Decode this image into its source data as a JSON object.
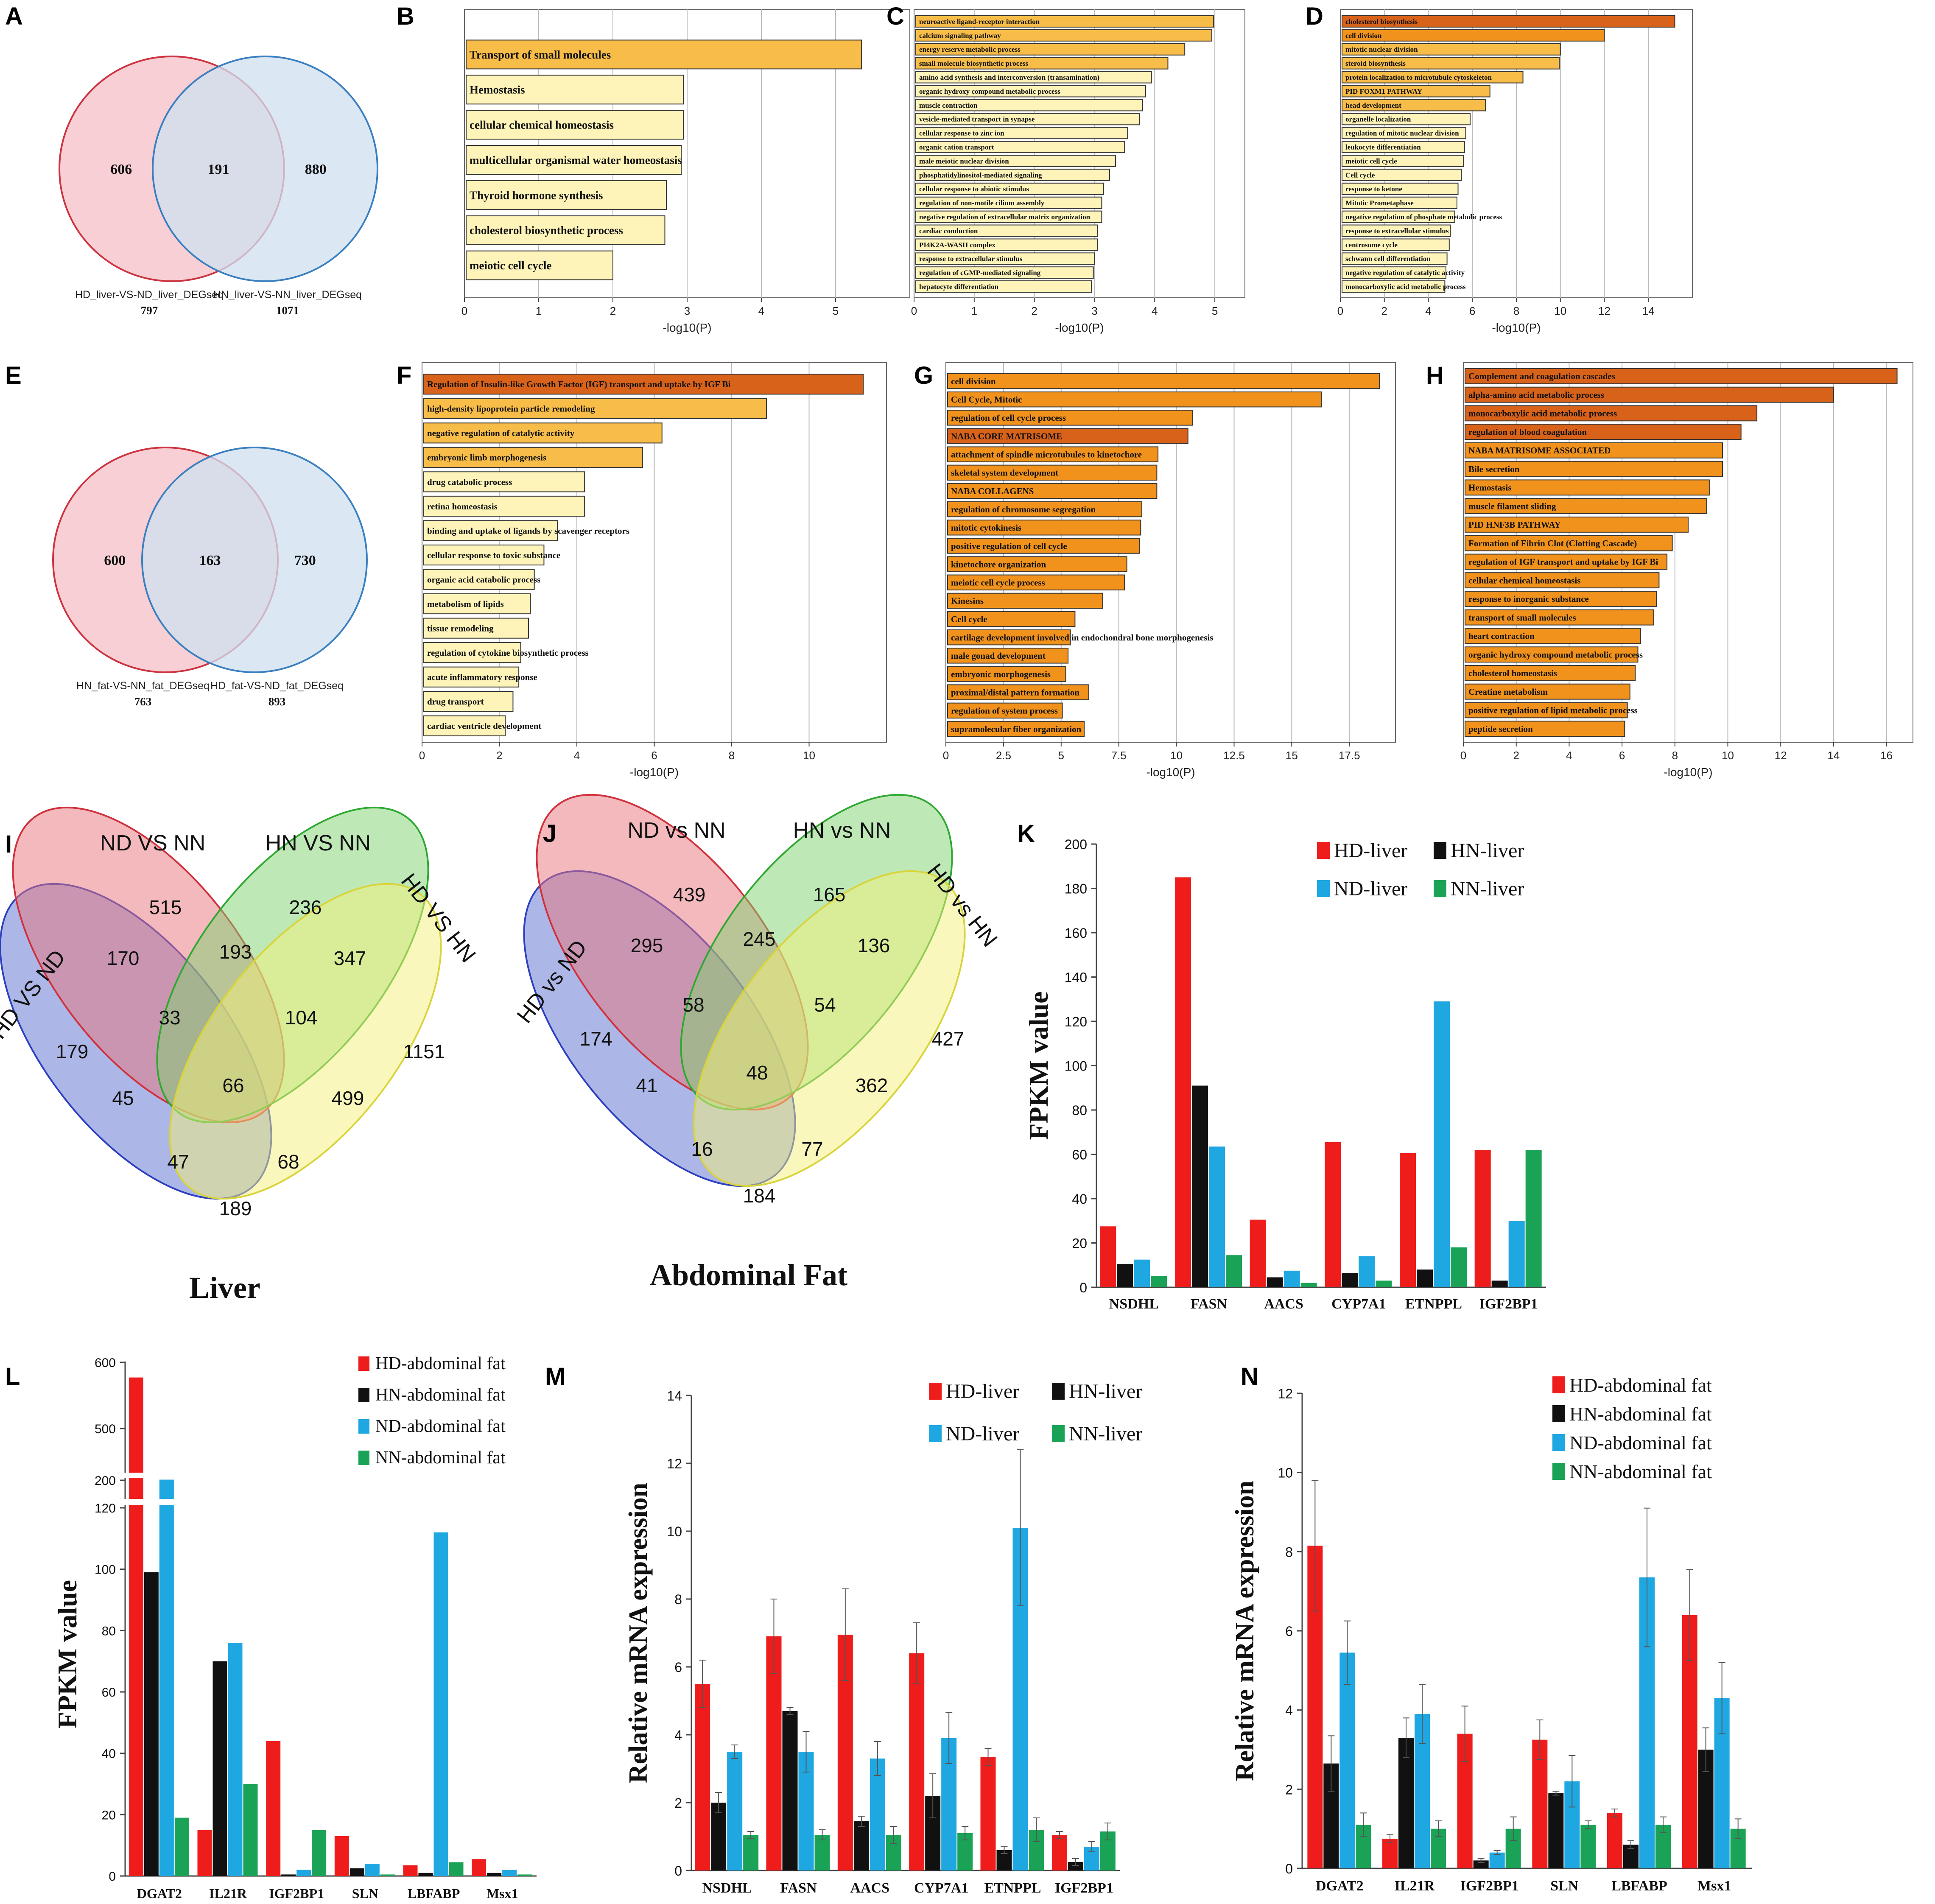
{
  "colors": {
    "go_light": "#fef3b8",
    "go_mid": "#f7bd48",
    "go_orange": "#f0921c",
    "go_dark": "#d9621a",
    "venn_red_fill": "#f6c7cc",
    "venn_red_stroke": "#cc3340",
    "venn_blue_fill": "#cfe0f0",
    "venn_blue_stroke": "#3a7fc0",
    "venn_overlap": "#d7b8c8",
    "hd": "#ef1c1c",
    "hn": "#111111",
    "nd": "#1ea7e1",
    "nn": "#1aa356",
    "v4_blue": "#5b6fd0",
    "v4_red": "#e8737c",
    "v4_green": "#7fd170",
    "v4_yellow": "#f4f07a",
    "v4_blue_stroke": "#2d3fc0",
    "v4_red_stroke": "#d0303c",
    "v4_green_stroke": "#2fa832",
    "v4_yellow_stroke": "#d8d43a"
  },
  "chart_data": [
    {
      "panel": "A",
      "type": "venn2",
      "left": {
        "label": "HD_liver-VS-ND_liver_DEGseq",
        "total": "797",
        "only": "606"
      },
      "right": {
        "label": "HN_liver-VS-NN_liver_DEGseq",
        "total": "1071",
        "only": "880"
      },
      "overlap": "191"
    },
    {
      "panel": "B",
      "type": "bar",
      "orientation": "horizontal",
      "xlabel": "-log10(P)",
      "xlim": [
        0,
        6
      ],
      "xticks": [
        0,
        1,
        2,
        3,
        4,
        5
      ],
      "categories": [
        "Transport of small molecules",
        "Hemostasis",
        "cellular chemical homeostasis",
        "multicellular organismal water homeostasis",
        "Thyroid hormone synthesis",
        "cholesterol biosynthetic process",
        "meiotic cell cycle"
      ],
      "values": [
        5.35,
        2.95,
        2.95,
        2.92,
        2.72,
        2.7,
        2.0
      ],
      "shade": [
        "mid",
        "light",
        "light",
        "light",
        "light",
        "light",
        "light"
      ]
    },
    {
      "panel": "C",
      "type": "bar",
      "orientation": "horizontal",
      "xlabel": "-log10(P)",
      "xlim": [
        0,
        5.5
      ],
      "xticks": [
        0,
        1,
        2,
        3,
        4,
        5
      ],
      "categories": [
        "neuroactive ligand-receptor interaction",
        "calcium signaling pathway",
        "energy reserve metabolic process",
        "small molecule biosynthetic process",
        "amino acid synthesis and interconversion (transamination)",
        "organic hydroxy compound metabolic process",
        "muscle contraction",
        "vesicle-mediated transport in synapse",
        "cellular response to zinc ion",
        "organic cation transport",
        "male meiotic nuclear division",
        "phosphatidylinositol-mediated signaling",
        "cellular response to abiotic stimulus",
        "regulation of non-motile cilium assembly",
        "negative regulation of extracellular matrix organization",
        "cardiac conduction",
        "PI4K2A-WASH complex",
        "response to extracellular stimulus",
        "regulation of cGMP-mediated signaling",
        "hepatocyte differentiation"
      ],
      "values": [
        4.98,
        4.95,
        4.5,
        4.22,
        3.95,
        3.85,
        3.8,
        3.75,
        3.55,
        3.5,
        3.35,
        3.25,
        3.15,
        3.12,
        3.12,
        3.05,
        3.05,
        3.0,
        2.98,
        2.95
      ],
      "shade": [
        "mid",
        "mid",
        "mid",
        "mid",
        "light",
        "light",
        "light",
        "light",
        "light",
        "light",
        "light",
        "light",
        "light",
        "light",
        "light",
        "light",
        "light",
        "light",
        "light",
        "light"
      ]
    },
    {
      "panel": "D",
      "type": "bar",
      "orientation": "horizontal",
      "xlabel": "-log10(P)",
      "xlim": [
        0,
        16
      ],
      "xticks": [
        0,
        2,
        4,
        6,
        8,
        10,
        12,
        14
      ],
      "categories": [
        "cholesterol biosynthesis",
        "cell division",
        "mitotic nuclear division",
        "steroid biosynthesis",
        "protein localization to microtubule cytoskeleton",
        "PID FOXM1 PATHWAY",
        "head development",
        "organelle localization",
        "regulation of mitotic nuclear division",
        "leukocyte differentiation",
        "meiotic cell cycle",
        "Cell cycle",
        "response to ketone",
        "Mitotic Prometaphase",
        "negative regulation of phosphate metabolic process",
        "response to extracellular stimulus",
        "centrosome cycle",
        "schwann cell differentiation",
        "negative regulation of catalytic activity",
        "monocarboxylic acid metabolic process"
      ],
      "values": [
        15.2,
        12.0,
        10.0,
        9.95,
        8.3,
        6.8,
        6.6,
        5.9,
        5.7,
        5.65,
        5.6,
        5.5,
        5.35,
        5.3,
        5.2,
        5.0,
        4.95,
        4.85,
        4.8,
        4.75
      ],
      "shade": [
        "dark",
        "orange",
        "mid",
        "mid",
        "mid",
        "mid",
        "mid",
        "light",
        "light",
        "light",
        "light",
        "light",
        "light",
        "light",
        "light",
        "light",
        "light",
        "light",
        "light",
        "light"
      ]
    },
    {
      "panel": "E",
      "type": "venn2",
      "left": {
        "label": "HN_fat-VS-NN_fat_DEGseq",
        "total": "763",
        "only": "600"
      },
      "right": {
        "label": "HD_fat-VS-ND_fat_DEGseq",
        "total": "893",
        "only": "730"
      },
      "overlap": "163"
    },
    {
      "panel": "F",
      "type": "bar",
      "orientation": "horizontal",
      "xlabel": "-log10(P)",
      "xlim": [
        0,
        12
      ],
      "xticks": [
        0,
        2,
        4,
        6,
        8,
        10
      ],
      "categories": [
        "Regulation of Insulin-like Growth Factor (IGF) transport and uptake by IGF Bi",
        "high-density lipoprotein particle remodeling",
        "negative regulation of catalytic activity",
        "embryonic limb morphogenesis",
        "drug catabolic process",
        "retina homeostasis",
        "binding and uptake of ligands by scavenger receptors",
        "cellular response to toxic substance",
        "organic acid catabolic process",
        "metabolism of lipids",
        "tissue remodeling",
        "regulation of cytokine biosynthetic process",
        "acute inflammatory response",
        "drug transport",
        "cardiac ventricle development"
      ],
      "values": [
        11.4,
        8.9,
        6.2,
        5.7,
        4.2,
        4.2,
        3.5,
        3.15,
        2.9,
        2.8,
        2.75,
        2.55,
        2.5,
        2.35,
        2.15
      ],
      "shade": [
        "dark",
        "mid",
        "mid",
        "mid",
        "light",
        "light",
        "light",
        "light",
        "light",
        "light",
        "light",
        "light",
        "light",
        "light",
        "light"
      ]
    },
    {
      "panel": "G",
      "type": "bar",
      "orientation": "horizontal",
      "xlabel": "-log10(P)",
      "xlim": [
        0,
        19.5
      ],
      "xticks": [
        0.0,
        2.5,
        5.0,
        7.5,
        10.0,
        12.5,
        15.0,
        17.5
      ],
      "categories": [
        "cell division",
        "Cell Cycle, Mitotic",
        "regulation of cell cycle process",
        "NABA CORE MATRISOME",
        "attachment of spindle microtubules to kinetochore",
        "skeletal system development",
        "NABA COLLAGENS",
        "regulation of chromosome segregation",
        "mitotic cytokinesis",
        "positive regulation of cell cycle",
        "kinetochore organization",
        "meiotic cell cycle process",
        "Kinesins",
        "Cell cycle",
        "cartilage development involved in endochondral bone morphogenesis",
        "male gonad development",
        "embryonic morphogenesis",
        "proximal/distal pattern formation",
        "regulation of system process",
        "supramolecular fiber organization"
      ],
      "values": [
        18.8,
        16.3,
        10.7,
        10.5,
        9.2,
        9.15,
        9.15,
        8.5,
        8.45,
        8.4,
        7.85,
        7.75,
        6.8,
        5.6,
        5.4,
        5.3,
        5.2,
        6.2,
        5.05,
        6.0
      ],
      "shade": [
        "orange",
        "orange",
        "orange",
        "dark",
        "orange",
        "orange",
        "orange",
        "orange",
        "orange",
        "orange",
        "orange",
        "orange",
        "orange",
        "orange",
        "orange",
        "orange",
        "orange",
        "orange",
        "orange",
        "orange"
      ]
    },
    {
      "panel": "H",
      "type": "bar",
      "orientation": "horizontal",
      "xlabel": "-log10(P)",
      "xlim": [
        0,
        17
      ],
      "xticks": [
        0,
        2,
        4,
        6,
        8,
        10,
        12,
        14,
        16
      ],
      "categories": [
        "Complement and coagulation cascades",
        "alpha-amino acid metabolic process",
        "monocarboxylic acid metabolic process",
        "regulation of blood coagulation",
        "NABA MATRISOME ASSOCIATED",
        "Bile secretion",
        "Hemostasis",
        "muscle filament sliding",
        "PID HNF3B PATHWAY",
        "Formation of Fibrin Clot (Clotting Cascade)",
        "regulation of IGF transport and uptake by IGF Bi",
        "cellular chemical homeostasis",
        "response to inorganic substance",
        "transport of small molecules",
        "heart contraction",
        "organic hydroxy compound metabolic process",
        "cholesterol homeostasis",
        "Creatine metabolism",
        "positive regulation of lipid metabolic process",
        "peptide secretion"
      ],
      "values": [
        16.4,
        14.0,
        11.1,
        10.5,
        9.8,
        9.8,
        9.3,
        9.2,
        8.5,
        7.9,
        7.7,
        7.4,
        7.3,
        7.2,
        6.7,
        6.6,
        6.5,
        6.3,
        6.2,
        6.1
      ],
      "shade": [
        "dark",
        "dark",
        "dark",
        "dark",
        "orange",
        "orange",
        "orange",
        "orange",
        "orange",
        "orange",
        "orange",
        "orange",
        "orange",
        "orange",
        "orange",
        "orange",
        "orange",
        "orange",
        "orange",
        "orange"
      ]
    },
    {
      "panel": "I",
      "type": "venn4",
      "title": "Liver",
      "sets": [
        "HD VS ND",
        "ND VS NN",
        "HN VS NN",
        "HD VS HN"
      ],
      "regions": {
        "A": "179",
        "B": "515",
        "C": "236",
        "D": "1151",
        "AB": "170",
        "BC": "193",
        "CD": "347",
        "ABC": "33",
        "BCD": "104",
        "ABCD": "66",
        "AC": "45",
        "BD": "499",
        "ACD": "47",
        "ABD": "68",
        "AD": "189"
      }
    },
    {
      "panel": "J",
      "type": "venn4",
      "title": "Abdominal Fat",
      "sets": [
        "HD vs ND",
        "ND vs NN",
        "HN vs NN",
        "HD vs HN"
      ],
      "regions": {
        "A": "174",
        "B": "439",
        "C": "165",
        "D": "427",
        "AB": "295",
        "BC": "245",
        "CD": "136",
        "ABC": "58",
        "BCD": "54",
        "ABCD": "48",
        "AC": "41",
        "BD": "362",
        "ACD": "16",
        "ABD": "77",
        "AD": "184"
      }
    },
    {
      "panel": "K",
      "type": "bar",
      "ylabel": "FPKM value",
      "ylim": [
        0,
        200
      ],
      "yticks": [
        0,
        20,
        40,
        60,
        80,
        100,
        120,
        140,
        160,
        180,
        200
      ],
      "categories": [
        "NSDHL",
        "FASN",
        "AACS",
        "CYP7A1",
        "ETNPPL",
        "IGF2BP1"
      ],
      "series": [
        {
          "name": "HD-liver",
          "values": [
            27.5,
            185,
            30.5,
            65.5,
            60.5,
            62
          ]
        },
        {
          "name": "HN-liver",
          "values": [
            10.5,
            91,
            4.5,
            6.5,
            8,
            3
          ]
        },
        {
          "name": "ND-liver",
          "values": [
            12.5,
            63.5,
            7.5,
            14,
            129,
            30
          ]
        },
        {
          "name": "NN-liver",
          "values": [
            5,
            14.5,
            2,
            3,
            18,
            62
          ]
        }
      ]
    },
    {
      "panel": "L",
      "type": "bar",
      "ylabel": "FPKM value",
      "broken_axis": true,
      "yticks_lower": [
        0,
        20,
        40,
        60,
        80,
        100,
        120
      ],
      "yticks_upper": [
        200,
        500,
        600
      ],
      "categories": [
        "DGAT2",
        "IL21R",
        "IGF2BP1",
        "SLN",
        "LBFABP",
        "Msx1"
      ],
      "series": [
        {
          "name": "HD-abdominal fat",
          "values": [
            545,
            15,
            44,
            13,
            3.5,
            5.5
          ]
        },
        {
          "name": "HN-abdominal fat",
          "values": [
            99,
            70,
            0.5,
            2.5,
            1,
            1
          ]
        },
        {
          "name": "ND-abdominal fat",
          "values": [
            215,
            76,
            2,
            4,
            112,
            2
          ]
        },
        {
          "name": "NN-abdominal fat",
          "values": [
            19,
            30,
            15,
            0.5,
            4.5,
            0.5
          ]
        }
      ]
    },
    {
      "panel": "M",
      "type": "bar",
      "ylabel": "Relative mRNA expression",
      "ylim": [
        0,
        14
      ],
      "yticks": [
        0,
        2,
        4,
        6,
        8,
        10,
        12,
        14
      ],
      "categories": [
        "NSDHL",
        "FASN",
        "AACS",
        "CYP7A1",
        "ETNPPL",
        "IGF2BP1"
      ],
      "series": [
        {
          "name": "HD-liver",
          "values": [
            5.5,
            6.9,
            6.95,
            6.4,
            3.35,
            1.05
          ],
          "errors": [
            0.7,
            1.1,
            1.35,
            0.9,
            0.25,
            0.1
          ]
        },
        {
          "name": "HN-liver",
          "values": [
            2.0,
            4.7,
            1.45,
            2.2,
            0.6,
            0.25
          ],
          "errors": [
            0.3,
            0.1,
            0.15,
            0.65,
            0.1,
            0.1
          ]
        },
        {
          "name": "ND-liver",
          "values": [
            3.5,
            3.5,
            3.3,
            3.9,
            10.1,
            0.7
          ],
          "errors": [
            0.2,
            0.6,
            0.5,
            0.75,
            2.3,
            0.15
          ]
        },
        {
          "name": "NN-liver",
          "values": [
            1.05,
            1.05,
            1.05,
            1.1,
            1.2,
            1.15
          ],
          "errors": [
            0.1,
            0.15,
            0.25,
            0.2,
            0.35,
            0.25
          ]
        }
      ]
    },
    {
      "panel": "N",
      "type": "bar",
      "ylabel": "Relative mRNA expression",
      "ylim": [
        0,
        12
      ],
      "yticks": [
        0,
        2,
        4,
        6,
        8,
        10,
        12
      ],
      "categories": [
        "DGAT2",
        "IL21R",
        "IGF2BP1",
        "SLN",
        "LBFABP",
        "Msx1"
      ],
      "series": [
        {
          "name": "HD-abdominal fat",
          "values": [
            8.15,
            0.75,
            3.4,
            3.25,
            1.4,
            6.4
          ],
          "errors": [
            1.65,
            0.1,
            0.7,
            0.5,
            0.1,
            1.15
          ]
        },
        {
          "name": "HN-abdominal fat",
          "values": [
            2.65,
            3.3,
            0.2,
            1.9,
            0.6,
            3.0
          ],
          "errors": [
            0.7,
            0.5,
            0.05,
            0.05,
            0.1,
            0.55
          ]
        },
        {
          "name": "ND-abdominal fat",
          "values": [
            5.45,
            3.9,
            0.4,
            2.2,
            7.35,
            4.3
          ],
          "errors": [
            0.8,
            0.75,
            0.05,
            0.65,
            1.75,
            0.9
          ]
        },
        {
          "name": "NN-abdominal fat",
          "values": [
            1.1,
            1.0,
            1.0,
            1.1,
            1.1,
            1.0
          ],
          "errors": [
            0.3,
            0.2,
            0.3,
            0.1,
            0.2,
            0.25
          ]
        }
      ]
    }
  ]
}
